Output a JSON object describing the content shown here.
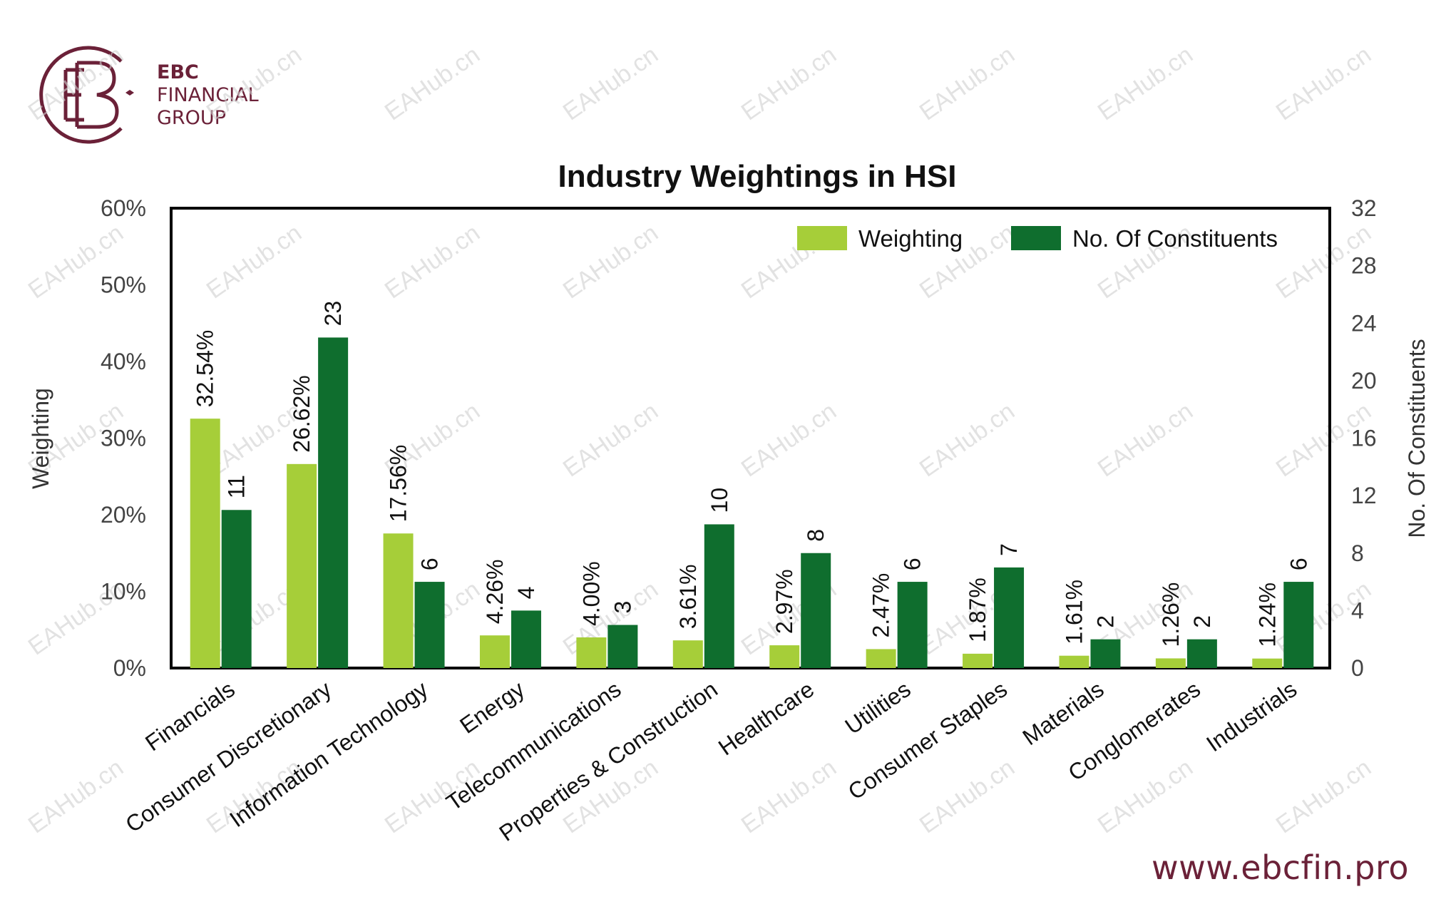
{
  "brand": {
    "name_line1": "EBC",
    "name_line2": "FINANCIAL",
    "name_line3": "GROUP",
    "url": "www.ebcfin.pro",
    "color": "#6b2138",
    "watermark": "EAHub.cn"
  },
  "colors": {
    "weighting": "#a6ce39",
    "constituents": "#0f6e2e"
  },
  "chart_data": {
    "type": "bar",
    "title": "Industry Weightings in HSI",
    "xlabel": "",
    "ylabel": "Weighting",
    "y2label": "No. Of Constituents",
    "ylim": [
      0,
      60
    ],
    "y2lim": [
      0,
      32
    ],
    "yticks": [
      "0%",
      "10%",
      "20%",
      "30%",
      "40%",
      "50%",
      "60%"
    ],
    "y2ticks": [
      "0",
      "4",
      "8",
      "12",
      "16",
      "20",
      "24",
      "28",
      "32"
    ],
    "legend": "top-right",
    "categories": [
      "Financials",
      "Consumer Discretionary",
      "Information Technology",
      "Energy",
      "Telecommunications",
      "Properties & Construction",
      "Healthcare",
      "Utilities",
      "Consumer Staples",
      "Materials",
      "Conglomerates",
      "Industrials"
    ],
    "series": [
      {
        "name": "Weighting",
        "axis": "left",
        "values": [
          32.54,
          26.62,
          17.56,
          4.26,
          4.0,
          3.61,
          2.97,
          2.47,
          1.87,
          1.61,
          1.26,
          1.24
        ],
        "labels": [
          "32.54%",
          "26.62%",
          "17.56%",
          "4.26%",
          "4.00%",
          "3.61%",
          "2.97%",
          "2.47%",
          "1.87%",
          "1.61%",
          "1.26%",
          "1.24%"
        ]
      },
      {
        "name": "No. Of Constituents",
        "axis": "right",
        "values": [
          11,
          23,
          6,
          4,
          3,
          10,
          8,
          6,
          7,
          2,
          2,
          6
        ],
        "labels": [
          "11",
          "23",
          "6",
          "4",
          "3",
          "10",
          "8",
          "6",
          "7",
          "2",
          "2",
          "6"
        ]
      }
    ]
  }
}
